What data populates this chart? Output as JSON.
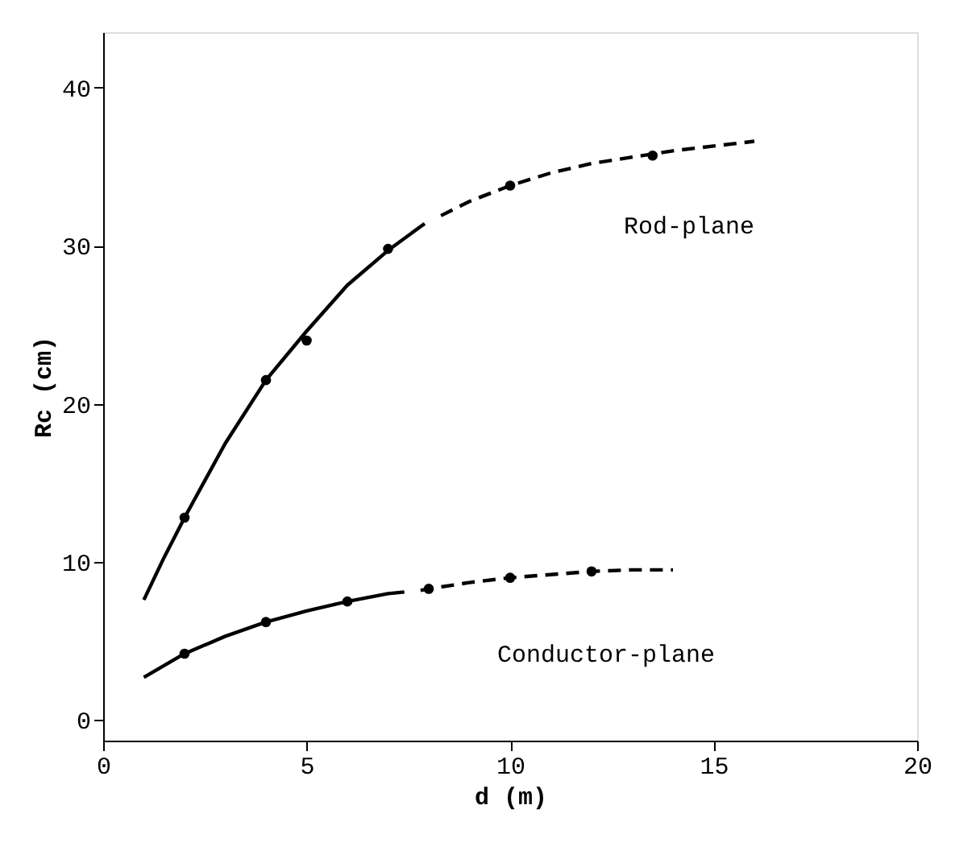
{
  "chart_data": {
    "type": "line",
    "xlabel": "d (m)",
    "ylabel": "Rc (cm)",
    "xlim": [
      0,
      20
    ],
    "ylim": [
      -1.3,
      43.5
    ],
    "xticks": [
      0,
      5,
      10,
      15,
      20
    ],
    "yticks": [
      0,
      10,
      20,
      30,
      40
    ],
    "grid": false,
    "series": [
      {
        "color": "#000000",
        "line_style": "solid",
        "marker": "none",
        "x": [
          1,
          1.5,
          2,
          3,
          4,
          5,
          6,
          7,
          7.9
        ],
        "values": [
          7.6,
          10.3,
          12.8,
          17.5,
          21.5,
          24.6,
          27.5,
          29.7,
          31.4
        ]
      },
      {
        "name": "Rod-plane",
        "color": "#000000",
        "line_style": "dashed",
        "marker": "none",
        "x": [
          8.3,
          9,
          10,
          11,
          12,
          13,
          14,
          15,
          16
        ],
        "values": [
          31.9,
          32.8,
          33.8,
          34.6,
          35.2,
          35.6,
          36,
          36.3,
          36.6
        ]
      },
      {
        "type": "scatter",
        "color": "#000000",
        "marker": "circle",
        "x": [
          2,
          4,
          5,
          7
        ],
        "values": [
          12.8,
          21.5,
          24,
          29.8
        ]
      },
      {
        "type": "scatter",
        "color": "#000000",
        "marker": "circle",
        "x": [
          10,
          13.5
        ],
        "values": [
          33.8,
          35.7
        ]
      },
      {
        "color": "#000000",
        "line_style": "solid",
        "marker": "none",
        "x": [
          1,
          2,
          3,
          4,
          5,
          6,
          7,
          7.4
        ],
        "values": [
          2.7,
          4.2,
          5.3,
          6.2,
          6.9,
          7.5,
          8.0,
          8.1
        ]
      },
      {
        "name": "Conductor-plane",
        "color": "#000000",
        "line_style": "dashed",
        "marker": "none",
        "x": [
          7.8,
          8,
          9,
          10,
          11,
          12,
          13,
          14
        ],
        "values": [
          8.2,
          8.3,
          8.7,
          9.0,
          9.2,
          9.4,
          9.5,
          9.5
        ]
      },
      {
        "type": "scatter",
        "color": "#000000",
        "marker": "circle",
        "x": [
          2,
          4,
          6
        ],
        "values": [
          4.2,
          6.2,
          7.5
        ]
      },
      {
        "type": "scatter",
        "color": "#000000",
        "marker": "circle",
        "x": [
          8,
          10,
          12
        ],
        "values": [
          8.3,
          9.0,
          9.4
        ]
      }
    ]
  }
}
